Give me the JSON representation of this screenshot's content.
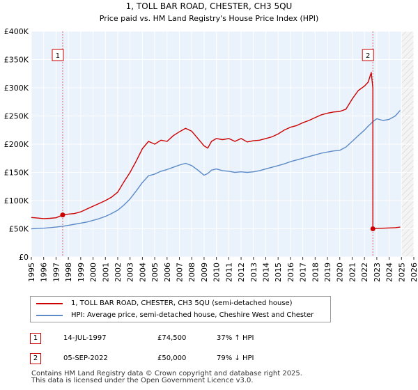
{
  "chart_data": {
    "type": "line",
    "title": "1, TOLL BAR ROAD, CHESTER, CH3 5QU",
    "subtitle": "Price paid vs. HM Land Registry's House Price Index (HPI)",
    "xlabel": "",
    "ylabel": "",
    "xlim": [
      1995,
      2026
    ],
    "ylim": [
      0,
      400000
    ],
    "x_ticks": [
      "1995",
      "1996",
      "1997",
      "1998",
      "1999",
      "2000",
      "2001",
      "2002",
      "2003",
      "2004",
      "2005",
      "2006",
      "2007",
      "2008",
      "2009",
      "2010",
      "2011",
      "2012",
      "2013",
      "2014",
      "2015",
      "2016",
      "2017",
      "2018",
      "2019",
      "2020",
      "2021",
      "2022",
      "2023",
      "2024",
      "2025",
      "2026"
    ],
    "y_ticks": [
      {
        "value": 0,
        "label": "£0"
      },
      {
        "value": 50000,
        "label": "£50K"
      },
      {
        "value": 100000,
        "label": "£100K"
      },
      {
        "value": 150000,
        "label": "£150K"
      },
      {
        "value": 200000,
        "label": "£200K"
      },
      {
        "value": 250000,
        "label": "£250K"
      },
      {
        "value": 300000,
        "label": "£300K"
      },
      {
        "value": 350000,
        "label": "£350K"
      },
      {
        "value": 400000,
        "label": "£400K"
      }
    ],
    "grid": true,
    "future_shading_from": 2025.0,
    "series": [
      {
        "name": "1, TOLL BAR ROAD, CHESTER, CH3 5QU (semi-detached house)",
        "color": "#cc0000",
        "x": [
          1995.0,
          1995.5,
          1996.0,
          1996.5,
          1997.0,
          1997.54,
          1998.0,
          1998.5,
          1999.0,
          1999.5,
          2000.0,
          2000.5,
          2001.0,
          2001.5,
          2002.0,
          2002.5,
          2003.0,
          2003.5,
          2004.0,
          2004.5,
          2005.0,
          2005.5,
          2006.0,
          2006.5,
          2007.0,
          2007.5,
          2008.0,
          2008.5,
          2009.0,
          2009.3,
          2009.6,
          2010.0,
          2010.5,
          2011.0,
          2011.5,
          2012.0,
          2012.5,
          2013.0,
          2013.5,
          2014.0,
          2014.5,
          2015.0,
          2015.5,
          2016.0,
          2016.5,
          2017.0,
          2017.5,
          2018.0,
          2018.5,
          2019.0,
          2019.5,
          2020.0,
          2020.5,
          2021.0,
          2021.5,
          2022.0,
          2022.3,
          2022.55,
          2022.68,
          2022.68,
          2023.0,
          2023.5,
          2024.0,
          2024.5,
          2024.9
        ],
        "values": [
          70000,
          69000,
          68000,
          68500,
          69500,
          74500,
          76000,
          77000,
          80000,
          85000,
          90000,
          95000,
          100000,
          106000,
          115000,
          133000,
          150000,
          170000,
          192000,
          205000,
          200000,
          207000,
          205000,
          215000,
          222000,
          228000,
          223000,
          210000,
          197000,
          193000,
          205000,
          210000,
          208000,
          210000,
          205000,
          210000,
          204000,
          206000,
          207000,
          210000,
          213000,
          218000,
          225000,
          230000,
          233000,
          238000,
          242000,
          247000,
          252000,
          255000,
          257000,
          258000,
          262000,
          280000,
          295000,
          303000,
          310000,
          327000,
          300000,
          50000,
          50500,
          51000,
          51500,
          52000,
          53000
        ]
      },
      {
        "name": "HPI: Average price, semi-detached house, Cheshire West and Chester",
        "color": "#5b8ac7",
        "x": [
          1995.0,
          1995.5,
          1996.0,
          1996.5,
          1997.0,
          1997.54,
          1998.0,
          1998.5,
          1999.0,
          1999.5,
          2000.0,
          2000.5,
          2001.0,
          2001.5,
          2002.0,
          2002.5,
          2003.0,
          2003.5,
          2004.0,
          2004.5,
          2005.0,
          2005.5,
          2006.0,
          2006.5,
          2007.0,
          2007.5,
          2008.0,
          2008.5,
          2009.0,
          2009.3,
          2009.6,
          2010.0,
          2010.5,
          2011.0,
          2011.5,
          2012.0,
          2012.5,
          2013.0,
          2013.5,
          2014.0,
          2014.5,
          2015.0,
          2015.5,
          2016.0,
          2016.5,
          2017.0,
          2017.5,
          2018.0,
          2018.5,
          2019.0,
          2019.5,
          2020.0,
          2020.5,
          2021.0,
          2021.5,
          2022.0,
          2022.3,
          2022.55,
          2022.68,
          2022.68,
          2023.0,
          2023.5,
          2024.0,
          2024.5,
          2024.9
        ],
        "values": [
          50000,
          50500,
          51000,
          52000,
          53000,
          54400,
          56000,
          58000,
          60000,
          62000,
          65000,
          68000,
          72000,
          77000,
          83000,
          92000,
          103000,
          117000,
          132000,
          144000,
          147000,
          152000,
          155000,
          159000,
          163000,
          166000,
          162000,
          154000,
          145000,
          148000,
          154000,
          156000,
          153000,
          152000,
          150000,
          151000,
          150000,
          151000,
          153000,
          156000,
          159000,
          162000,
          165000,
          169000,
          172000,
          175000,
          178000,
          181000,
          184000,
          186000,
          188000,
          189000,
          195000,
          205000,
          215000,
          225000,
          232000,
          237000,
          240000,
          240000,
          245000,
          242000,
          244000,
          250000,
          260000
        ]
      }
    ],
    "markers": [
      {
        "label": "1",
        "x": 1997.54,
        "y": 74500
      },
      {
        "label": "2",
        "x": 2022.68,
        "y": 50000
      }
    ]
  },
  "legend": {
    "items": [
      {
        "label": "1, TOLL BAR ROAD, CHESTER, CH3 5QU (semi-detached house)",
        "color": "#cc0000"
      },
      {
        "label": "HPI: Average price, semi-detached house, Cheshire West and Chester",
        "color": "#5b8ac7"
      }
    ]
  },
  "sales": [
    {
      "num": "1",
      "date": "14-JUL-1997",
      "price": "£74,500",
      "hpi": "37% ↑ HPI"
    },
    {
      "num": "2",
      "date": "05-SEP-2022",
      "price": "£50,000",
      "hpi": "79% ↓ HPI"
    }
  ],
  "footer": {
    "line1": "Contains HM Land Registry data © Crown copyright and database right 2025.",
    "line2": "This data is licensed under the Open Government Licence v3.0."
  }
}
